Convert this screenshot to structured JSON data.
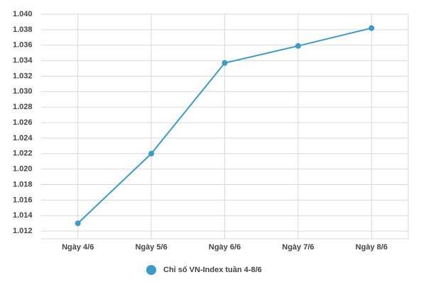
{
  "chart_data": {
    "type": "line",
    "categories": [
      "Ngày 4/6",
      "Ngày 5/6",
      "Ngày 6/6",
      "Ngày 7/6",
      "Ngày 8/6"
    ],
    "series": [
      {
        "name": "Chỉ số VN-Index tuần 4-8/6",
        "color": "#3b9ac6",
        "values": [
          1013,
          1022,
          1033.7,
          1035.9,
          1038.2
        ]
      }
    ],
    "ylim": [
      1011,
      1040
    ],
    "yticks": [
      {
        "value": 1012,
        "label": "1.012"
      },
      {
        "value": 1014,
        "label": "1.014"
      },
      {
        "value": 1016,
        "label": "1.016"
      },
      {
        "value": 1018,
        "label": "1.018"
      },
      {
        "value": 1020,
        "label": "1.020"
      },
      {
        "value": 1022,
        "label": "1.022"
      },
      {
        "value": 1024,
        "label": "1.024"
      },
      {
        "value": 1026,
        "label": "1.026"
      },
      {
        "value": 1028,
        "label": "1.028"
      },
      {
        "value": 1030,
        "label": "1.030"
      },
      {
        "value": 1032,
        "label": "1.032"
      },
      {
        "value": 1034,
        "label": "1.034"
      },
      {
        "value": 1036,
        "label": "1.036"
      },
      {
        "value": 1038,
        "label": "1.038"
      },
      {
        "value": 1040,
        "label": "1.040"
      }
    ],
    "grid": true,
    "legend": "bottom"
  }
}
